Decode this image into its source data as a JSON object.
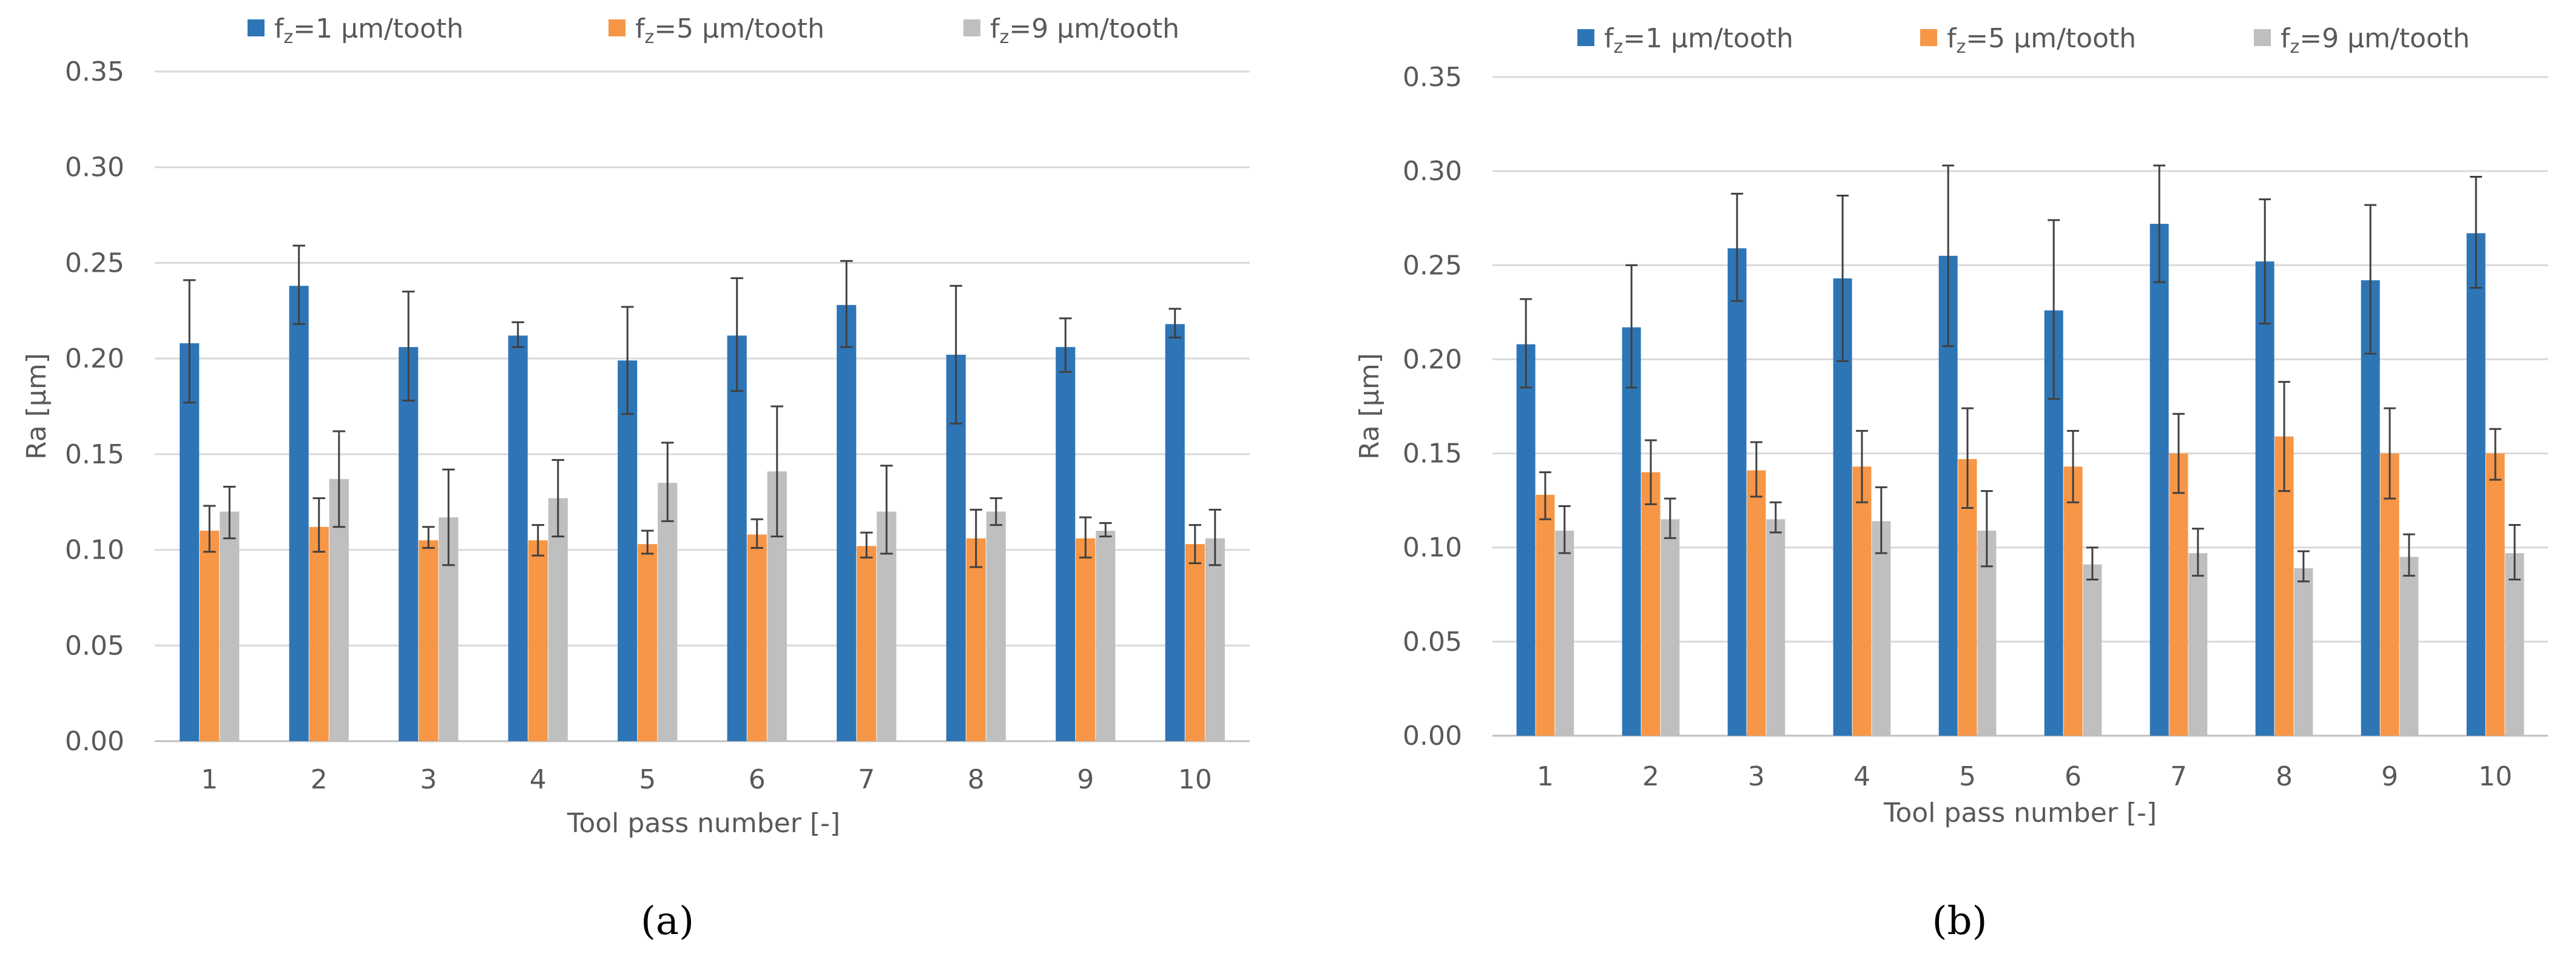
{
  "chart_data": [
    {
      "type": "bar",
      "panel_label": "(a)",
      "xlabel": "Tool pass number [-]",
      "ylabel": "Ra [µm]",
      "ylim": [
        0,
        0.35
      ],
      "y_ticks": [
        "0.00",
        "0.05",
        "0.10",
        "0.15",
        "0.20",
        "0.25",
        "0.30",
        "0.35"
      ],
      "categories": [
        "1",
        "2",
        "3",
        "4",
        "5",
        "6",
        "7",
        "8",
        "9",
        "10"
      ],
      "grid": true,
      "legend_position": "top",
      "series": [
        {
          "name": "fz=1 µm/tooth",
          "name_main": "f",
          "name_sub": "z",
          "name_rest": "=1 µm/tooth",
          "color": "#2E75B6",
          "values": [
            0.208,
            0.238,
            0.206,
            0.212,
            0.199,
            0.212,
            0.228,
            0.202,
            0.206,
            0.218
          ],
          "err_low": [
            0.177,
            0.218,
            0.178,
            0.206,
            0.171,
            0.183,
            0.206,
            0.166,
            0.193,
            0.211
          ],
          "err_high": [
            0.241,
            0.259,
            0.235,
            0.219,
            0.227,
            0.242,
            0.251,
            0.238,
            0.221,
            0.226
          ]
        },
        {
          "name": "fz=5 µm/tooth",
          "name_main": "f",
          "name_sub": "z",
          "name_rest": "=5 µm/tooth",
          "color": "#F79646",
          "values": [
            0.11,
            0.112,
            0.105,
            0.105,
            0.103,
            0.108,
            0.102,
            0.106,
            0.106,
            0.103
          ],
          "err_low": [
            0.099,
            0.099,
            0.101,
            0.097,
            0.098,
            0.101,
            0.096,
            0.091,
            0.096,
            0.093
          ],
          "err_high": [
            0.123,
            0.127,
            0.112,
            0.113,
            0.11,
            0.116,
            0.109,
            0.121,
            0.117,
            0.113
          ]
        },
        {
          "name": "fz=9 µm/tooth",
          "name_main": "f",
          "name_sub": "z",
          "name_rest": "=9 µm/tooth",
          "color": "#BFBFBF",
          "values": [
            0.12,
            0.137,
            0.117,
            0.127,
            0.135,
            0.141,
            0.12,
            0.12,
            0.11,
            0.106
          ],
          "err_low": [
            0.106,
            0.112,
            0.092,
            0.107,
            0.115,
            0.107,
            0.098,
            0.113,
            0.107,
            0.092
          ],
          "err_high": [
            0.133,
            0.162,
            0.142,
            0.147,
            0.156,
            0.175,
            0.144,
            0.127,
            0.114,
            0.121
          ]
        }
      ]
    },
    {
      "type": "bar",
      "panel_label": "(b)",
      "xlabel": "Tool pass number [-]",
      "ylabel": "Ra [µm]",
      "ylim": [
        0,
        0.35
      ],
      "y_ticks": [
        "0.00",
        "0.05",
        "0.10",
        "0.15",
        "0.20",
        "0.25",
        "0.30",
        "0.35"
      ],
      "categories": [
        "1",
        "2",
        "3",
        "4",
        "5",
        "6",
        "7",
        "8",
        "9",
        "10"
      ],
      "grid": true,
      "legend_position": "top",
      "series": [
        {
          "name": "fz=1 µm/tooth",
          "name_main": "f",
          "name_sub": "z",
          "name_rest": "=1 µm/tooth",
          "color": "#2E75B6",
          "values": [
            0.208,
            0.217,
            0.259,
            0.243,
            0.255,
            0.226,
            0.272,
            0.252,
            0.242,
            0.267
          ],
          "err_low": [
            0.185,
            0.185,
            0.231,
            0.199,
            0.207,
            0.179,
            0.241,
            0.219,
            0.203,
            0.238
          ],
          "err_high": [
            0.232,
            0.25,
            0.288,
            0.287,
            0.303,
            0.274,
            0.303,
            0.285,
            0.282,
            0.297
          ]
        },
        {
          "name": "fz=5 µm/tooth",
          "name_main": "f",
          "name_sub": "z",
          "name_rest": "=5 µm/tooth",
          "color": "#F79646",
          "values": [
            0.128,
            0.14,
            0.141,
            0.143,
            0.147,
            0.143,
            0.15,
            0.159,
            0.15,
            0.15
          ],
          "err_low": [
            0.115,
            0.123,
            0.127,
            0.124,
            0.121,
            0.124,
            0.129,
            0.13,
            0.126,
            0.136
          ],
          "err_high": [
            0.14,
            0.157,
            0.156,
            0.162,
            0.174,
            0.162,
            0.171,
            0.188,
            0.174,
            0.163
          ]
        },
        {
          "name": "fz=9 µm/tooth",
          "name_main": "f",
          "name_sub": "z",
          "name_rest": "=9 µm/tooth",
          "color": "#BFBFBF",
          "values": [
            0.109,
            0.115,
            0.115,
            0.114,
            0.109,
            0.091,
            0.097,
            0.089,
            0.095,
            0.097
          ],
          "err_low": [
            0.097,
            0.105,
            0.108,
            0.097,
            0.09,
            0.083,
            0.085,
            0.082,
            0.085,
            0.083
          ],
          "err_high": [
            0.122,
            0.126,
            0.124,
            0.132,
            0.13,
            0.1,
            0.11,
            0.098,
            0.107,
            0.112
          ]
        }
      ]
    }
  ]
}
